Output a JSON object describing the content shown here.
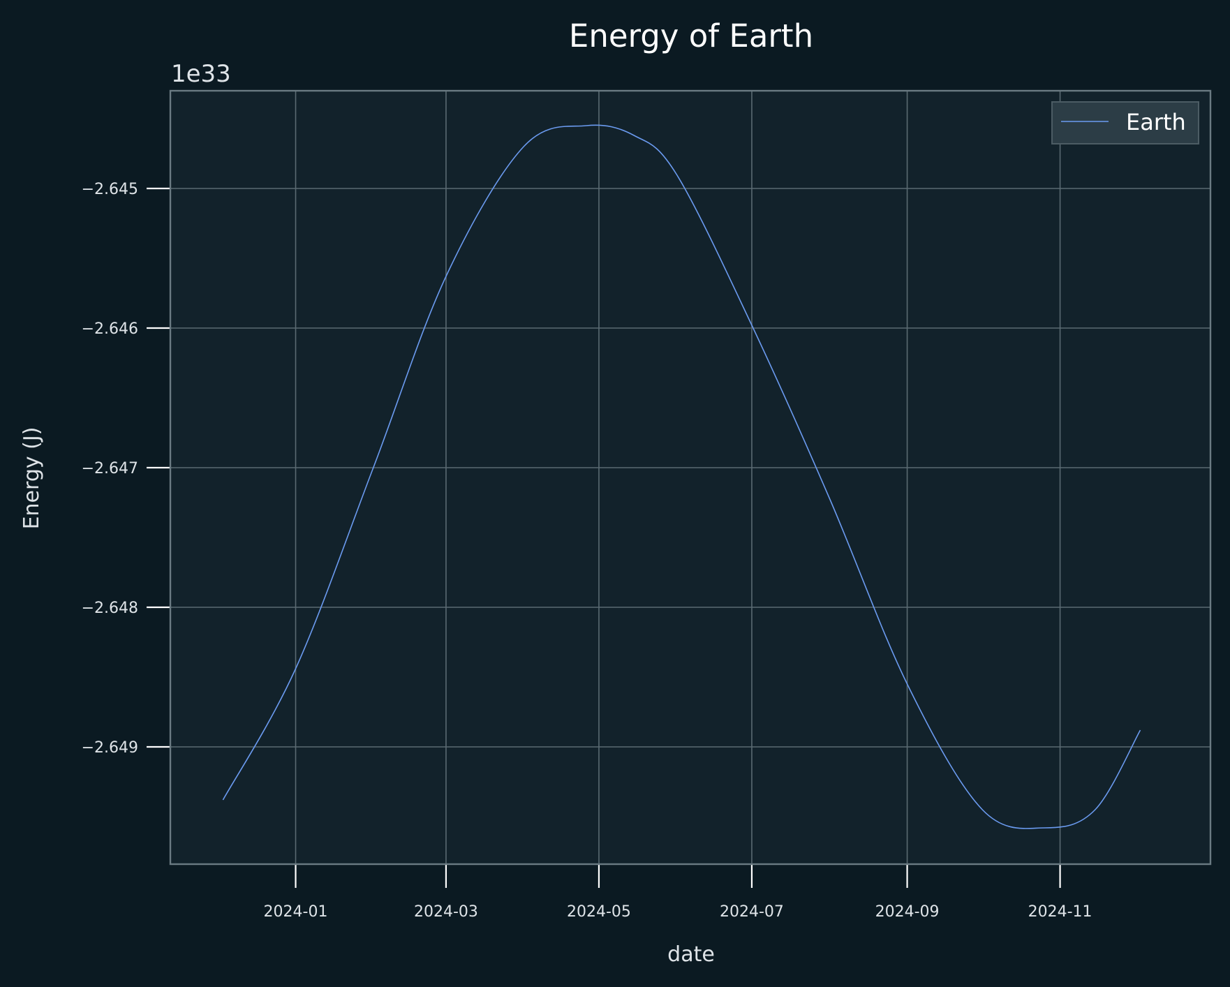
{
  "chart_data": {
    "type": "line",
    "title": "Energy of Earth",
    "xlabel": "date",
    "ylabel": "Energy (J)",
    "y_offset_label": "1e33",
    "x_ticks": [
      "2024-01",
      "2024-03",
      "2024-05",
      "2024-07",
      "2024-09",
      "2024-11"
    ],
    "y_ticks": [
      -2.645,
      -2.646,
      -2.647,
      -2.648,
      -2.649
    ],
    "y_tick_labels": [
      "−2.645",
      "−2.646",
      "−2.647",
      "−2.648",
      "−2.649"
    ],
    "xlim": [
      "2023-11-12",
      "2024-12-31"
    ],
    "ylim": [
      -2.64984,
      -2.6443
    ],
    "grid": true,
    "legend_position": "top-right",
    "series": [
      {
        "name": "Earth",
        "color": "#6b9bf0",
        "x": [
          "2023-12-03",
          "2024-01-01",
          "2024-02-01",
          "2024-03-01",
          "2024-04-01",
          "2024-04-26",
          "2024-05-15",
          "2024-06-01",
          "2024-07-01",
          "2024-08-01",
          "2024-09-01",
          "2024-10-01",
          "2024-10-26",
          "2024-11-15",
          "2024-12-03"
        ],
        "y": [
          -2.64938,
          -2.64844,
          -2.647,
          -2.64563,
          -2.6447,
          -2.64455,
          -2.64462,
          -2.6449,
          -2.64598,
          -2.64722,
          -2.64855,
          -2.64945,
          -2.64958,
          -2.64945,
          -2.64888
        ]
      }
    ],
    "colors": {
      "background": "#0b1a22",
      "plot_background": "#12222b",
      "grid": "#5a6a72",
      "text": "#dfe4e8"
    }
  }
}
